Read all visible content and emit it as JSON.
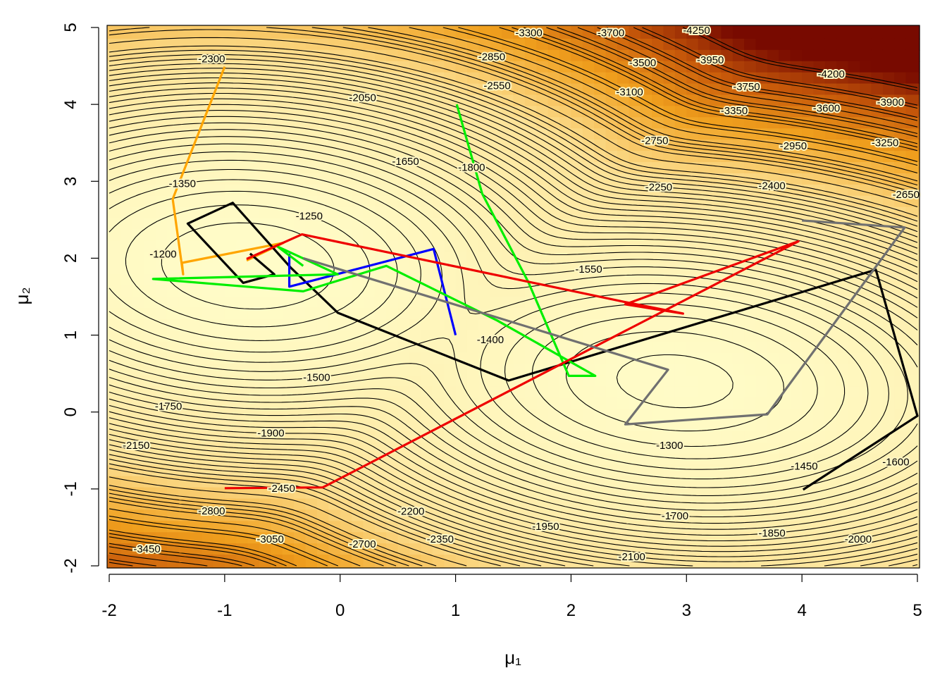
{
  "chart_data": {
    "type": "contour",
    "xlabel": "μ₁",
    "ylabel": "μ₂",
    "xlim": [
      -2,
      5
    ],
    "ylim": [
      -2,
      5
    ],
    "xticks": [
      -2,
      -1,
      0,
      1,
      2,
      3,
      4,
      5
    ],
    "yticks": [
      -2,
      -1,
      0,
      1,
      2,
      3,
      4,
      5
    ],
    "contour_levels": [
      -1200,
      -1250,
      -1300,
      -1350,
      -1400,
      -1450,
      -1500,
      -1550,
      -1600,
      -1650,
      -1700,
      -1750,
      -1800,
      -1850,
      -1900,
      -1950,
      -2000,
      -2050,
      -2100,
      -2150,
      -2200,
      -2250,
      -2300,
      -2350,
      -2400,
      -2450,
      -2550,
      -2650,
      -2700,
      -2750,
      -2800,
      -2850,
      -2950,
      -3050,
      -3100,
      -3250,
      -3300,
      -3350,
      -3450,
      -3500,
      -3600,
      -3700,
      -3750,
      -3900,
      -3950,
      -4200,
      -4250
    ],
    "series": [
      {
        "name": "orange",
        "color": "#ffa500",
        "x": [
          -1.0,
          -1.45,
          -1.36,
          -1.37,
          -0.49,
          -0.81
        ],
        "y": [
          4.49,
          2.77,
          1.79,
          1.94,
          2.2,
          1.97
        ]
      },
      {
        "name": "black",
        "color": "#000000",
        "x": [
          4.01,
          5.0,
          4.64,
          1.46,
          -0.02,
          -0.43,
          -0.93,
          -1.32,
          -0.84,
          -0.57,
          -0.78
        ],
        "y": [
          -1.01,
          -0.05,
          1.85,
          0.41,
          1.29,
          1.88,
          2.72,
          2.45,
          1.68,
          1.79,
          2.06
        ]
      },
      {
        "name": "blue",
        "color": "#0000ff",
        "x": [
          1.0,
          0.81,
          -0.44,
          -0.44
        ],
        "y": [
          1.0,
          2.12,
          1.63,
          2.06
        ]
      },
      {
        "name": "green",
        "color": "#00ee00",
        "x": [
          1.01,
          1.23,
          1.63,
          1.98,
          2.21,
          1.36,
          0.4,
          -0.32,
          -1.62,
          -0.02,
          -0.54,
          -0.32
        ],
        "y": [
          4.0,
          2.84,
          1.69,
          0.47,
          0.47,
          1.19,
          1.9,
          1.57,
          1.73,
          1.79,
          2.15,
          1.9
        ]
      },
      {
        "name": "red",
        "color": "#ee0000",
        "x": [
          -1.0,
          -0.15,
          3.97,
          2.47,
          2.97,
          2.5,
          -0.33,
          -0.81
        ],
        "y": [
          -0.99,
          -0.98,
          2.22,
          1.4,
          1.28,
          1.42,
          2.31,
          1.99
        ]
      },
      {
        "name": "gray",
        "color": "#707070",
        "x": [
          4.0,
          4.89,
          3.7,
          2.47,
          2.84,
          -0.32
        ],
        "y": [
          2.49,
          2.4,
          -0.03,
          -0.16,
          0.55,
          2.0
        ]
      }
    ]
  }
}
